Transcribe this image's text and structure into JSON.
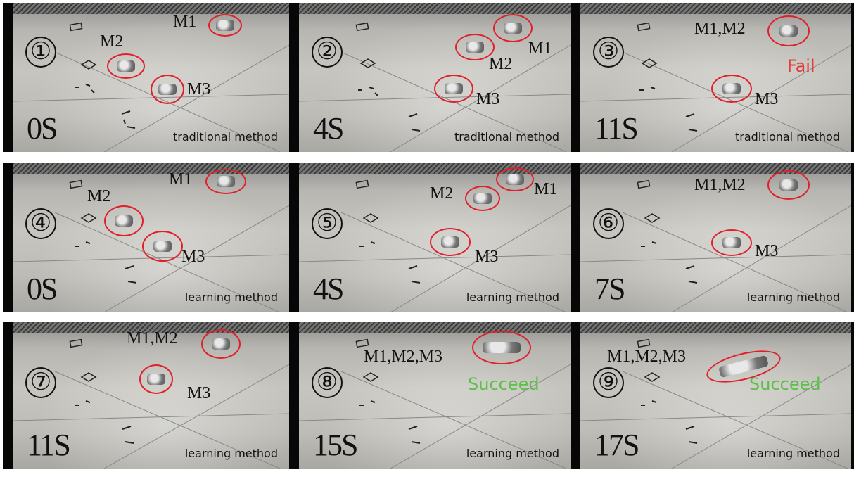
{
  "panels": [
    {
      "number": "①",
      "time": "0S",
      "method": "traditional method",
      "labels": [
        "M2",
        "M1",
        "M3"
      ],
      "status": ""
    },
    {
      "number": "②",
      "time": "4S",
      "method": "traditional method",
      "labels": [
        "M1",
        "M2",
        "M3"
      ],
      "status": ""
    },
    {
      "number": "③",
      "time": "11S",
      "method": "traditional method",
      "labels": [
        "M1,M2",
        "M3"
      ],
      "status": "Fail"
    },
    {
      "number": "④",
      "time": "0S",
      "method": "learning method",
      "labels": [
        "M2",
        "M1",
        "M3"
      ],
      "status": ""
    },
    {
      "number": "⑤",
      "time": "4S",
      "method": "learning method",
      "labels": [
        "M2",
        "M1",
        "M3"
      ],
      "status": ""
    },
    {
      "number": "⑥",
      "time": "7S",
      "method": "learning method",
      "labels": [
        "M1,M2",
        "M3"
      ],
      "status": ""
    },
    {
      "number": "⑦",
      "time": "11S",
      "method": "learning method",
      "labels": [
        "M1,M2",
        "M3"
      ],
      "status": ""
    },
    {
      "number": "⑧",
      "time": "15S",
      "method": "learning method",
      "labels": [
        "M1,M2,M3"
      ],
      "status": "Succeed"
    },
    {
      "number": "⑨",
      "time": "17S",
      "method": "learning method",
      "labels": [
        "M1,M2,M3"
      ],
      "status": "Succeed"
    }
  ],
  "colors": {
    "circle": "#e0202a",
    "fail": "#e53a3a",
    "succeed": "#5dbf4a"
  }
}
